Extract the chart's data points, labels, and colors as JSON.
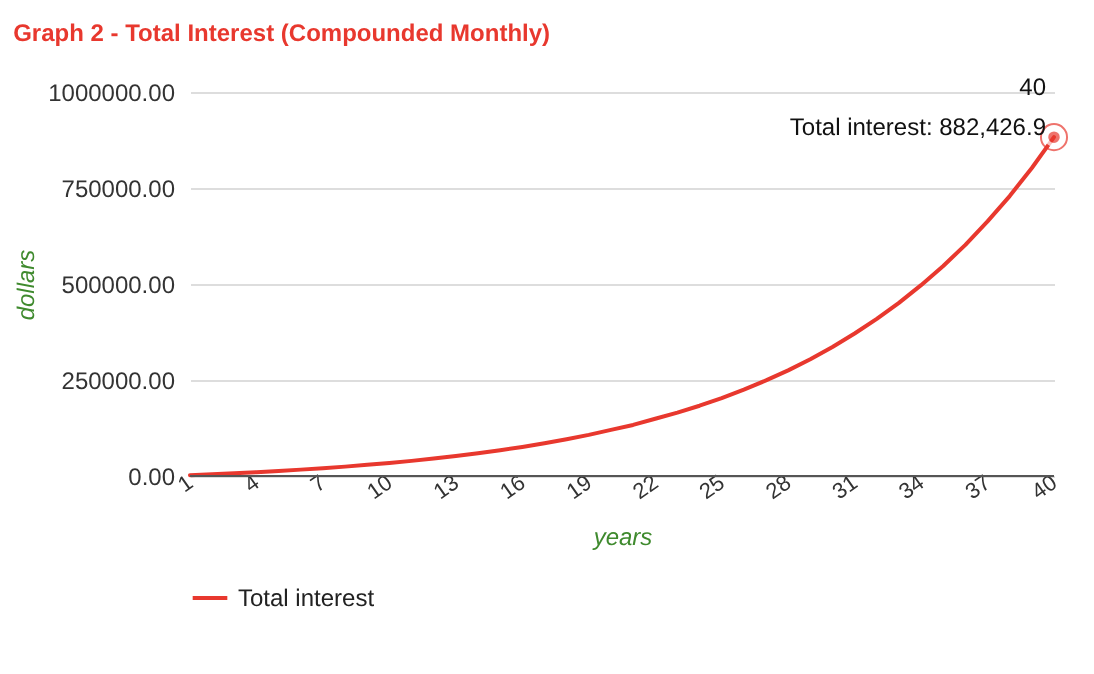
{
  "chart_data": {
    "type": "line",
    "title": "Graph 2 - Total Interest (Compounded Monthly)",
    "xlabel": "years",
    "ylabel": "dollars",
    "categories": [
      "1",
      null,
      null,
      "4",
      null,
      null,
      "7",
      null,
      null,
      "10",
      null,
      null,
      "13",
      null,
      null,
      "16",
      null,
      null,
      "19",
      null,
      null,
      "22",
      null,
      null,
      "25",
      null,
      null,
      "28",
      null,
      null,
      "31",
      null,
      null,
      "34",
      null,
      null,
      "37",
      null,
      null,
      "40"
    ],
    "series": [
      {
        "name": "Total interest",
        "color": "#e8382e",
        "values": [
          2160,
          4540,
          7130,
          9990,
          13100,
          16600,
          20300,
          24400,
          29000,
          34000,
          39400,
          45400,
          52000,
          59200,
          67100,
          75700,
          85200,
          95700,
          107000,
          120000,
          133000,
          149000,
          165000,
          183000,
          203000,
          225000,
          249000,
          275000,
          304000,
          336000,
          371000,
          409000,
          451000,
          497000,
          547000,
          602000,
          663000,
          729000,
          802000,
          882426.9
        ]
      }
    ],
    "ylim": [
      0,
      1000000
    ],
    "yticks": [
      {
        "value": 0,
        "label": "0.00"
      },
      {
        "value": 250000,
        "label": "250000.00"
      },
      {
        "value": 500000,
        "label": "500000.00"
      },
      {
        "value": 750000,
        "label": "750000.00"
      },
      {
        "value": 1000000,
        "label": "1000000.00"
      }
    ],
    "grid": "y",
    "legend": "bottom",
    "marker": "none",
    "line_style": "solid",
    "annotations": [
      {
        "text": "40\nTotal interest: 882,426.9",
        "x": "40",
        "y": 882426.9
      }
    ]
  }
}
